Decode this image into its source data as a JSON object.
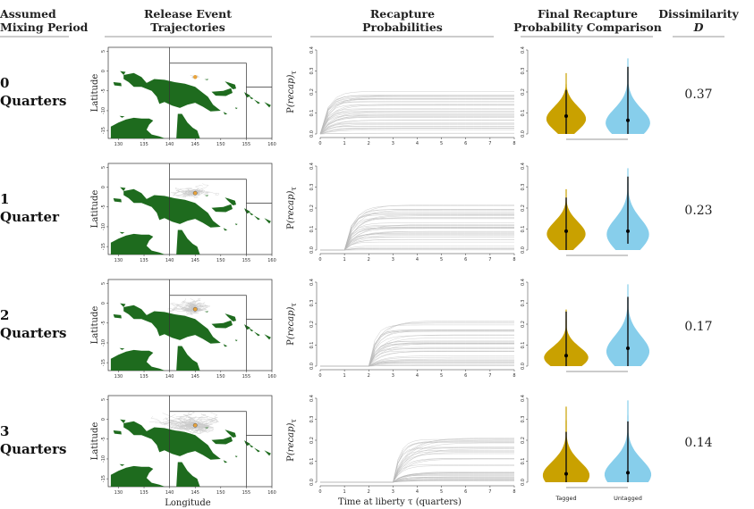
{
  "headers": {
    "mixing": "Assumed\nMixing Period",
    "release": "Release Event\nTrajectories",
    "recap": "Recapture\nProbabilities",
    "final": "Final Recapture\nProbability Comparison",
    "dissim": "Dissimilarity",
    "dissim_sym": "D"
  },
  "rows": [
    {
      "label1": "0",
      "label2": "Quarters",
      "d": "0.37"
    },
    {
      "label1": "1",
      "label2": "Quarter",
      "d": "0.23"
    },
    {
      "label1": "2",
      "label2": "Quarters",
      "d": "0.17"
    },
    {
      "label1": "3",
      "label2": "Quarters",
      "d": "0.14"
    }
  ],
  "map_axes": {
    "xlabel": "Longitude",
    "ylabel": "Latitude",
    "xticks": [
      "130",
      "135",
      "140",
      "145",
      "150",
      "155",
      "160"
    ],
    "yticks": [
      "5",
      "0",
      "-5",
      "-10",
      "-15"
    ],
    "xlim": [
      128,
      160
    ],
    "ylim": [
      -17,
      6
    ]
  },
  "chart_data": [
    {
      "type": "line",
      "title": "Recapture Probabilities",
      "xlabel": "Time at liberty τ (quarters)",
      "ylabel_prefix": "P",
      "ylabel_italic": "(recap)",
      "ylabel_sub": "τ",
      "xlim": [
        0,
        8
      ],
      "ylim": [
        0,
        0.4
      ],
      "xticks": [
        "0",
        "1",
        "2",
        "3",
        "4",
        "5",
        "6",
        "7",
        "8"
      ],
      "yticks": [
        "0.0",
        "0.1",
        "0.2",
        "0.3",
        "0.4"
      ],
      "mixing_periods": [
        0,
        1,
        2,
        3
      ],
      "final_probability_range": [
        0.0,
        0.22
      ]
    },
    {
      "type": "violin",
      "title": "Final Recapture Probability Comparison",
      "groups": [
        "Tagged",
        "Untagged"
      ],
      "colors": [
        "#C9A100",
        "#87CEEB"
      ],
      "ylim": [
        0,
        0.4
      ],
      "yticks": [
        "0.0",
        "0.1",
        "0.2",
        "0.3",
        "0.4"
      ],
      "panels": [
        {
          "tagged": {
            "median": 0.085,
            "min": 0.0,
            "max": 0.29,
            "iqr": [
              0.0,
              0.21
            ]
          },
          "untagged": {
            "median": 0.065,
            "min": 0.0,
            "max": 0.36,
            "iqr": [
              0.0,
              0.32
            ]
          }
        },
        {
          "tagged": {
            "median": 0.09,
            "min": 0.0,
            "max": 0.29,
            "iqr": [
              0.0,
              0.25
            ]
          },
          "untagged": {
            "median": 0.09,
            "min": 0.0,
            "max": 0.39,
            "iqr": [
              0.03,
              0.35
            ]
          }
        },
        {
          "tagged": {
            "median": 0.05,
            "min": 0.0,
            "max": 0.27,
            "iqr": [
              0.0,
              0.26
            ]
          },
          "untagged": {
            "median": 0.085,
            "min": 0.0,
            "max": 0.39,
            "iqr": [
              0.0,
              0.33
            ]
          }
        },
        {
          "tagged": {
            "median": 0.04,
            "min": 0.0,
            "max": 0.36,
            "iqr": [
              0.0,
              0.24
            ]
          },
          "untagged": {
            "median": 0.045,
            "min": 0.0,
            "max": 0.39,
            "iqr": [
              0.0,
              0.29
            ]
          }
        }
      ]
    }
  ],
  "colors": {
    "land": "#1E6B1E",
    "tagged": "#C9A100",
    "untagged": "#87CEEB",
    "release_point": "#E8A33C"
  }
}
